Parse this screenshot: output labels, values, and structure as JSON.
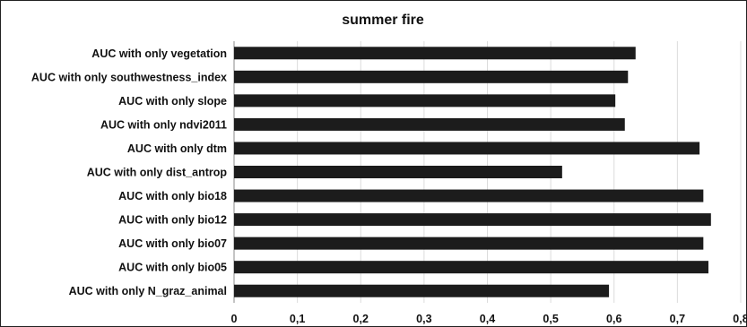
{
  "chart_data": {
    "type": "bar",
    "orientation": "horizontal",
    "title": "summer fire",
    "xlabel": "",
    "ylabel": "",
    "categories": [
      "AUC with only vegetation",
      "AUC with only southwestness_index",
      "AUC with only slope",
      "AUC with only ndvi2011",
      "AUC with only dtm",
      "AUC with only dist_antrop",
      "AUC with only bio18",
      "AUC with only bio12",
      "AUC with only bio07",
      "AUC with only bio05",
      "AUC with only N_graz_animal"
    ],
    "values": [
      0.634,
      0.622,
      0.602,
      0.617,
      0.735,
      0.518,
      0.741,
      0.753,
      0.741,
      0.749,
      0.592
    ],
    "xlim": [
      0,
      0.8
    ],
    "xticks": [
      "0",
      "0,1",
      "0,2",
      "0,3",
      "0,4",
      "0,5",
      "0,6",
      "0,7",
      "0,8"
    ],
    "grid": true,
    "legend": "none",
    "colors": {
      "bar": "#1c1c1c",
      "grid": "#dcdcdc",
      "text": "#111111"
    }
  }
}
